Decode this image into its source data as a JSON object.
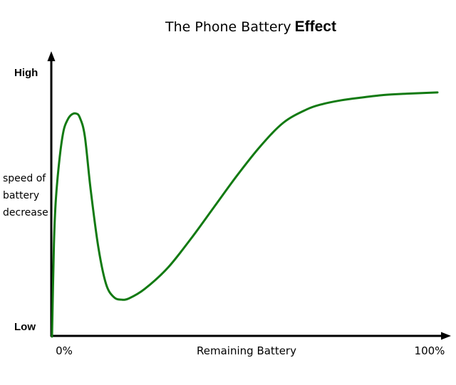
{
  "chart_data": {
    "type": "line",
    "title": "The Phone Battery",
    "title_emphasis": "Effect",
    "xlabel": "Remaining Battery",
    "ylabel": [
      "speed of",
      "battery",
      "decrease"
    ],
    "x_tick_labels": [
      "0%",
      "100%"
    ],
    "y_tick_labels": [
      "Low",
      "High"
    ],
    "xlim": [
      0,
      100
    ],
    "ylim": [
      0,
      100
    ],
    "grid": false,
    "legend": "none",
    "series": [
      {
        "color": "#127a12",
        "x": [
          0,
          0.5,
          1.0,
          2.0,
          3.0,
          4.0,
          5.0,
          6.2,
          7.2,
          8.5,
          10.0,
          12.0,
          14.0,
          16.0,
          18.0,
          20.0,
          24.0,
          30.0,
          36.0,
          42.0,
          48.0,
          54.0,
          60.0,
          66.0,
          70.0,
          75.0,
          80.0,
          86.0,
          92.0,
          100.0
        ],
        "y": [
          0,
          35,
          52,
          68,
          78,
          82,
          84,
          84.5,
          83,
          76,
          56,
          34,
          20,
          15,
          14,
          14.5,
          18,
          26,
          37,
          49,
          61,
          72,
          81,
          86,
          88,
          89.5,
          90.5,
          91.5,
          92,
          92.5
        ]
      }
    ]
  }
}
